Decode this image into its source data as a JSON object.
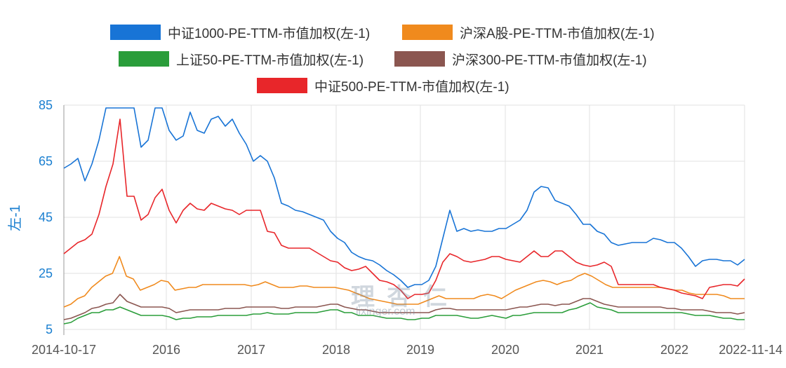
{
  "watermark": {
    "name": "理杏仁",
    "url": "lixinger.com"
  },
  "chart_data": {
    "type": "line",
    "title": "",
    "xlabel": "",
    "ylabel": "左-1",
    "ylim": [
      5,
      85
    ],
    "yticks": [
      "5",
      "25",
      "45",
      "65",
      "85"
    ],
    "xticks": [
      "2014-10-17",
      "2016",
      "2017",
      "2018",
      "2019",
      "2020",
      "2021",
      "2022",
      "2022-11-14"
    ],
    "x_range": [
      "2014-10-17",
      "2022-11-14"
    ],
    "sampling": "approximately monthly, evenly spaced from 2014-10-17 to 2022-11-14",
    "grid": true,
    "legend_position": "top-center",
    "series": [
      {
        "name": "中证1000-PE-TTM-市值加权(左-1)",
        "color": "#1874d6",
        "values": [
          62.5,
          64,
          66,
          58,
          64,
          72.5,
          84,
          84,
          84,
          84,
          84,
          70,
          72.5,
          84,
          84,
          76,
          72.5,
          74,
          82.5,
          76,
          75,
          80,
          81,
          77.5,
          80,
          75,
          71,
          65,
          67,
          65,
          59,
          50,
          49,
          47.5,
          47,
          46,
          45,
          44,
          40,
          37.5,
          36,
          32.5,
          31,
          30,
          29.5,
          28,
          26,
          24.5,
          22.5,
          20,
          21,
          21,
          22.5,
          27.5,
          37.5,
          47.5,
          40,
          41,
          40,
          40.5,
          40,
          40,
          41,
          41,
          42.5,
          44,
          47.5,
          54,
          56,
          55.5,
          51,
          50,
          49,
          46,
          42.5,
          42.5,
          40,
          39,
          36,
          35,
          35.5,
          36,
          36,
          36,
          37.5,
          37,
          36,
          36,
          34,
          31,
          27.5,
          29.5,
          30,
          30,
          29.5,
          29.5,
          28,
          30
        ]
      },
      {
        "name": "沪深A股-PE-TTM-市值加权(左-1)",
        "color": "#f08a1d",
        "values": [
          13,
          14,
          16,
          17,
          20,
          22,
          24,
          25,
          31,
          24,
          23,
          19,
          20,
          21,
          22.5,
          22,
          19,
          19.5,
          20,
          20,
          21,
          21,
          21,
          21,
          21,
          21,
          21,
          20.5,
          21,
          22,
          21,
          20,
          20,
          20,
          20.5,
          20.5,
          20,
          20,
          20,
          20,
          19.5,
          19,
          18,
          17,
          16,
          15.5,
          15,
          14.5,
          14,
          14,
          14,
          14,
          15,
          16,
          17,
          16,
          16,
          16,
          16,
          16,
          17,
          17.5,
          17,
          16,
          17.5,
          19,
          20,
          21,
          22,
          22.5,
          22,
          21,
          22,
          22.5,
          24,
          25,
          24,
          22.5,
          21,
          20,
          20,
          20,
          20,
          20,
          20,
          20,
          20,
          19.5,
          19,
          19,
          18,
          17.5,
          17.5,
          17.5,
          17.5,
          17,
          16,
          16,
          16
        ]
      },
      {
        "name": "上证50-PE-TTM-市值加权(左-1)",
        "color": "#2a9d3a",
        "values": [
          7,
          7.5,
          9,
          10,
          11,
          11,
          12,
          12,
          13,
          12,
          11,
          10,
          10,
          10,
          10,
          9.5,
          8.5,
          9,
          9,
          9.5,
          9.5,
          9.5,
          10,
          10,
          10,
          10,
          10,
          10.5,
          10.5,
          11,
          10.5,
          10.5,
          10.5,
          11,
          11,
          11,
          11,
          11.5,
          12,
          12,
          11,
          11,
          10,
          10,
          10,
          9.5,
          9,
          9,
          9,
          8.5,
          8.5,
          9,
          9,
          10,
          10,
          10,
          10,
          9.5,
          9,
          9,
          9.5,
          10,
          9.5,
          9,
          10,
          10,
          10.5,
          11,
          11,
          11,
          11,
          11,
          12,
          12.5,
          13.5,
          14.5,
          13,
          12.5,
          12,
          11,
          11,
          11,
          11,
          11,
          11,
          11,
          11,
          11,
          11,
          10.5,
          10,
          10,
          10,
          9.5,
          9,
          9,
          8.5,
          8.5
        ]
      },
      {
        "name": "沪深300-PE-TTM-市值加权(左-1)",
        "color": "#8b5650",
        "values": [
          8.5,
          9,
          10,
          11,
          12.5,
          13,
          14,
          14.5,
          17.5,
          15,
          14,
          13,
          13,
          13,
          13,
          12.5,
          11,
          11.5,
          12,
          12,
          12,
          12,
          12,
          12.5,
          12.5,
          12.5,
          13,
          13,
          13,
          13,
          13,
          12.5,
          12.5,
          13,
          13,
          13,
          13,
          13.5,
          14,
          14,
          13,
          12.5,
          12,
          12,
          11.5,
          11,
          11,
          11,
          11,
          11,
          11,
          11,
          11,
          12,
          12.5,
          12.5,
          12,
          12,
          12,
          12,
          12,
          12,
          12,
          12,
          12.5,
          13,
          13,
          13.5,
          14,
          14,
          13.5,
          14,
          14,
          15,
          16,
          16,
          15,
          14,
          13.5,
          13,
          13,
          13,
          13,
          13,
          13,
          13,
          12.5,
          12.5,
          12,
          12,
          12,
          12,
          11.5,
          11,
          11,
          11,
          10.5,
          11
        ]
      },
      {
        "name": "中证500-PE-TTM-市值加权(左-1)",
        "color": "#e8262a",
        "values": [
          32,
          34,
          36,
          37,
          39,
          46,
          56,
          64,
          80,
          52.5,
          52.5,
          44,
          46,
          52,
          55,
          47.5,
          43,
          47.5,
          50,
          48,
          47.5,
          50,
          49,
          48,
          47.5,
          46,
          47.5,
          47.5,
          47.5,
          40,
          39.5,
          35,
          34,
          34,
          34,
          34,
          32.5,
          31,
          29.5,
          29,
          27,
          26,
          26.5,
          27.5,
          25,
          22.5,
          22,
          21,
          19,
          16,
          17.5,
          17.5,
          18,
          22.5,
          29,
          32,
          31,
          29.5,
          29,
          29.5,
          30,
          31,
          31,
          30,
          29.5,
          29,
          31,
          33,
          31,
          31,
          33,
          33,
          31,
          29,
          28,
          27.5,
          28,
          29,
          27.5,
          21,
          21,
          21,
          21,
          21,
          21,
          20,
          19.5,
          19,
          18,
          17.5,
          17,
          16,
          20,
          20.5,
          21,
          21,
          20.5,
          23
        ]
      }
    ]
  }
}
